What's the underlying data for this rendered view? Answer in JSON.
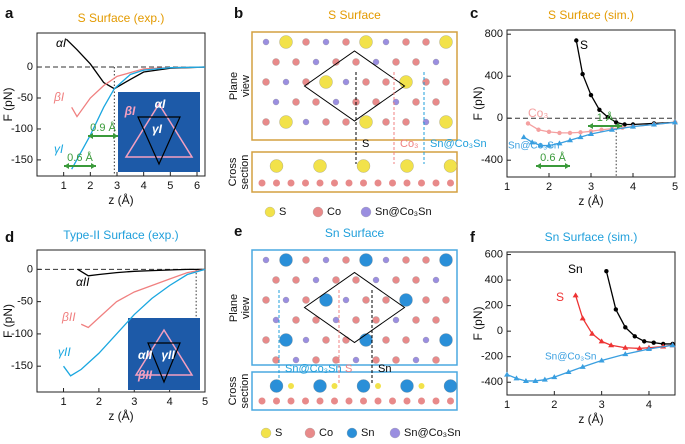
{
  "chart_data": [
    {
      "panel": "a",
      "type": "line",
      "title": "S Surface (exp.)",
      "title_color": "#e39a00",
      "x_label": "z (Å)",
      "y_label": "F (pN)",
      "xlim": [
        0,
        6.3
      ],
      "ylim": [
        -176,
        55
      ],
      "xticks": [
        1,
        2,
        3,
        4,
        5,
        6
      ],
      "yticks": [
        0,
        -50,
        -100,
        -150
      ],
      "zero_line": true,
      "marker_x": [
        2.9
      ],
      "markers": false,
      "series": [
        {
          "name": "αI",
          "color": "#000000",
          "x": [
            1.1,
            1.5,
            2.0,
            2.5,
            2.9,
            3.5,
            4.0,
            5.0,
            6.3
          ],
          "values": [
            45,
            28,
            5,
            -25,
            -35,
            -20,
            -8,
            -2,
            0
          ]
        },
        {
          "name": "βI",
          "color": "#f08080",
          "x": [
            1.3,
            1.5,
            2.0,
            2.5,
            3.0,
            4.0,
            5.0,
            6.3
          ],
          "values": [
            -65,
            -80,
            -50,
            -30,
            -15,
            -3,
            -1,
            0
          ]
        },
        {
          "name": "γI",
          "color": "#1aa7e0",
          "x": [
            1.3,
            2.0,
            2.5,
            2.9,
            3.5,
            4.0,
            5.0,
            6.3
          ],
          "values": [
            -165,
            -110,
            -65,
            -35,
            -12,
            -5,
            -1,
            0
          ]
        }
      ],
      "annotations": [
        "0.9 Å",
        "0.6 Å"
      ],
      "inset_labels": [
        "αI",
        "βI",
        "γI"
      ]
    },
    {
      "panel": "c",
      "type": "line",
      "title": "S Surface (sim.)",
      "title_color": "#e39a00",
      "x_label": "z (Å)",
      "y_label": "F (pN)",
      "xlim": [
        1,
        5
      ],
      "ylim": [
        -560,
        840
      ],
      "xticks": [
        1,
        2,
        3,
        4,
        5
      ],
      "yticks": [
        -400,
        0,
        400,
        800
      ],
      "zero_line": true,
      "marker_x": [
        3.6
      ],
      "markers": true,
      "series": [
        {
          "name": "S",
          "color": "#000000",
          "marker": "circle",
          "x": [
            2.65,
            2.8,
            3.0,
            3.2,
            3.4,
            3.6,
            3.8,
            4.0,
            4.5,
            5.0
          ],
          "values": [
            740,
            420,
            220,
            80,
            10,
            -40,
            -60,
            -60,
            -50,
            -40
          ]
        },
        {
          "name": "Co₃",
          "color": "#f4a0a0",
          "marker": "circle",
          "x": [
            1.5,
            1.75,
            2.0,
            2.25,
            2.5,
            2.75,
            3.0,
            3.25,
            3.5,
            3.75,
            4.0,
            4.5,
            5.0
          ],
          "values": [
            -50,
            -110,
            -130,
            -140,
            -140,
            -135,
            -125,
            -110,
            -100,
            -90,
            -80,
            -60,
            -40
          ]
        },
        {
          "name": "Sn@Co₃Sn",
          "color": "#3a9fe0",
          "marker": "triangle",
          "x": [
            1.4,
            1.6,
            1.8,
            2.0,
            2.25,
            2.5,
            2.75,
            3.0,
            3.5,
            4.0,
            4.5,
            5.0
          ],
          "values": [
            -180,
            -230,
            -260,
            -260,
            -240,
            -210,
            -180,
            -150,
            -110,
            -80,
            -60,
            -40
          ]
        }
      ],
      "annotations": [
        "1 Å",
        "0.6 Å"
      ]
    },
    {
      "panel": "d",
      "type": "line",
      "title": "Type-II Surface (exp.)",
      "title_color": "#1f9fdb",
      "x_label": "z (Å)",
      "y_label": "F (pN)",
      "xlim": [
        0.25,
        5
      ],
      "ylim": [
        -190,
        30
      ],
      "xticks": [
        1,
        2,
        3,
        4,
        5
      ],
      "yticks": [
        0,
        -50,
        -100,
        -150
      ],
      "zero_line": true,
      "marker_x": [
        4.75
      ],
      "markers": false,
      "series": [
        {
          "name": "αII",
          "color": "#000000",
          "x": [
            1.4,
            1.7,
            2.0,
            2.5,
            3.0,
            3.5,
            4.0,
            4.5,
            5.0
          ],
          "values": [
            0,
            -10,
            -8,
            -5,
            -3,
            -2,
            -1,
            0,
            0
          ]
        },
        {
          "name": "βII",
          "color": "#f08080",
          "x": [
            1.5,
            1.7,
            2.0,
            2.5,
            3.0,
            3.5,
            4.0,
            4.5,
            5.0
          ],
          "values": [
            -85,
            -90,
            -75,
            -50,
            -35,
            -25,
            -15,
            -5,
            0
          ]
        },
        {
          "name": "γII",
          "color": "#1aa7e0",
          "x": [
            1.0,
            1.2,
            1.5,
            2.0,
            2.5,
            3.0,
            3.5,
            4.0,
            4.5,
            5.0
          ],
          "values": [
            -150,
            -165,
            -155,
            -130,
            -100,
            -70,
            -45,
            -25,
            -8,
            0
          ]
        }
      ],
      "annotations": [],
      "inset_labels": [
        "αII",
        "βII",
        "γII"
      ]
    },
    {
      "panel": "f",
      "type": "line",
      "title": "Sn Surface (sim.)",
      "title_color": "#1f9fdb",
      "x_label": "z (Å)",
      "y_label": "F (pN)",
      "xlim": [
        1,
        4.55
      ],
      "ylim": [
        -500,
        620
      ],
      "xticks": [
        1,
        2,
        3,
        4
      ],
      "yticks": [
        -400,
        -200,
        0,
        200,
        400,
        600
      ],
      "zero_line": false,
      "marker_x": [],
      "markers": true,
      "series": [
        {
          "name": "Sn",
          "color": "#000000",
          "marker": "circle",
          "x": [
            3.1,
            3.3,
            3.5,
            3.7,
            3.9,
            4.1,
            4.3,
            4.5
          ],
          "values": [
            470,
            170,
            30,
            -40,
            -80,
            -90,
            -100,
            -100
          ]
        },
        {
          "name": "S",
          "color": "#ee3333",
          "marker": "triangle",
          "x": [
            2.45,
            2.6,
            2.8,
            3.0,
            3.2,
            3.5,
            3.8,
            4.0,
            4.3,
            4.5
          ],
          "values": [
            280,
            100,
            -20,
            -80,
            -110,
            -130,
            -135,
            -130,
            -120,
            -110
          ]
        },
        {
          "name": "Sn@Co₃Sn",
          "color": "#3a9fe0",
          "marker": "triangle",
          "x": [
            1.0,
            1.2,
            1.4,
            1.6,
            1.8,
            2.0,
            2.3,
            2.6,
            3.0,
            3.5,
            4.0,
            4.5
          ],
          "values": [
            -340,
            -370,
            -390,
            -390,
            -380,
            -360,
            -320,
            -280,
            -230,
            -180,
            -140,
            -110
          ]
        }
      ],
      "annotations": []
    }
  ],
  "diagrams": [
    {
      "panel": "b",
      "title": "S Surface",
      "title_color": "#e39a00",
      "frame_color": "#d4a040",
      "views": [
        "Plane view",
        "Cross section"
      ],
      "site_labels": [
        {
          "text": "S",
          "color": "#000000"
        },
        {
          "text": "Co₃",
          "color": "#f08080"
        },
        {
          "text": "Sn@Co₃Sn",
          "color": "#1f9fdb"
        }
      ],
      "legend": [
        {
          "name": "S",
          "color": "#f2e24a"
        },
        {
          "name": "Co",
          "color": "#e88a8a"
        },
        {
          "name": "Sn@Co₃Sn",
          "color": "#9a8ee0"
        }
      ]
    },
    {
      "panel": "e",
      "title": "Sn Surface",
      "title_color": "#1f9fdb",
      "frame_color": "#4aa8e0",
      "views": [
        "Plane view",
        "Cross section"
      ],
      "site_labels": [
        {
          "text": "Sn@Co₃Sn",
          "color": "#1f9fdb"
        },
        {
          "text": "S",
          "color": "#f08080"
        },
        {
          "text": "Sn",
          "color": "#000000"
        }
      ],
      "legend": [
        {
          "name": "S",
          "color": "#f2e24a"
        },
        {
          "name": "Co",
          "color": "#e88a8a"
        },
        {
          "name": "Sn",
          "color": "#2a8fd8"
        },
        {
          "name": "Sn@Co₃Sn",
          "color": "#9a8ee0"
        }
      ]
    }
  ]
}
